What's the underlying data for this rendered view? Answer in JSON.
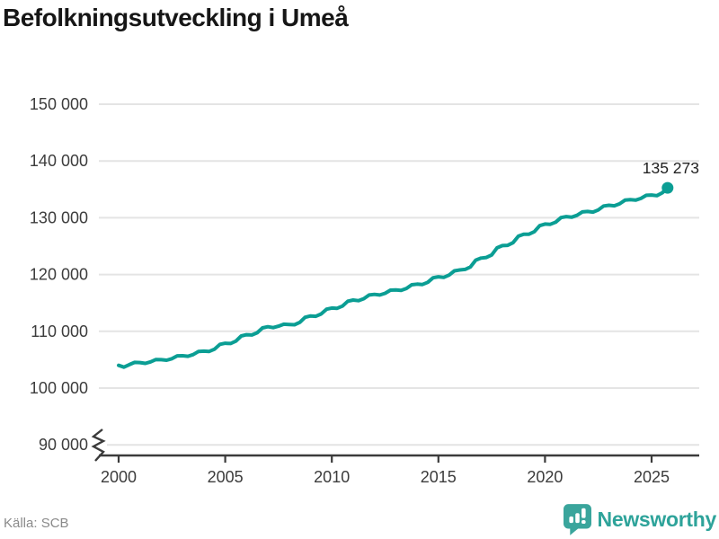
{
  "title": "Befolkningsutveckling i Umeå",
  "source": "Källa: SCB",
  "brand": {
    "name": "Newsworthy"
  },
  "colors": {
    "line": "#0b9e94",
    "grid": "#e4e4e4",
    "axis": "#3b3b3b",
    "tick_text": "#3c3c3c",
    "title_text": "#161616",
    "muted_text": "#8a8a8a",
    "brand_teal": "#2ea39a",
    "end_label_text": "#222222"
  },
  "chart_data": {
    "type": "line",
    "title": "Befolkningsutveckling i Umeå",
    "xlabel": "",
    "ylabel": "",
    "grid": "horizontal-only",
    "legend": "none",
    "x_axis": {
      "ticks": [
        2000,
        2005,
        2010,
        2015,
        2020,
        2025
      ],
      "range": [
        1999.05,
        2027.25
      ]
    },
    "y_axis": {
      "range_shown": [
        90000,
        150000
      ],
      "broken_below": 90000,
      "ticks": [
        {
          "value": 150000,
          "label": "150 000"
        },
        {
          "value": 140000,
          "label": "140 000"
        },
        {
          "value": 130000,
          "label": "130 000"
        },
        {
          "value": 120000,
          "label": "120 000"
        },
        {
          "value": 110000,
          "label": "110 000"
        },
        {
          "value": 100000,
          "label": "100 000"
        },
        {
          "value": 90000,
          "label": "90 000"
        }
      ]
    },
    "last_point": {
      "x": 2025.75,
      "y": 135273,
      "label": "135 273"
    },
    "series": [
      {
        "name": "Befolkning Umeå",
        "points": [
          [
            2000,
            104000
          ],
          [
            2000.25,
            103680
          ],
          [
            2000.5,
            104125
          ],
          [
            2000.75,
            104525
          ],
          [
            2001,
            104500
          ],
          [
            2001.25,
            104350
          ],
          [
            2001.5,
            104625
          ],
          [
            2001.75,
            105025
          ],
          [
            2002,
            105000
          ],
          [
            2002.25,
            104900
          ],
          [
            2002.5,
            105175
          ],
          [
            2002.75,
            105675
          ],
          [
            2003,
            105700
          ],
          [
            2003.25,
            105600
          ],
          [
            2003.5,
            105900
          ],
          [
            2003.75,
            106450
          ],
          [
            2004,
            106500
          ],
          [
            2004.25,
            106450
          ],
          [
            2004.5,
            106850
          ],
          [
            2004.75,
            107700
          ],
          [
            2005,
            107900
          ],
          [
            2005.25,
            107850
          ],
          [
            2005.5,
            108275
          ],
          [
            2005.75,
            109175
          ],
          [
            2006,
            109400
          ],
          [
            2006.25,
            109350
          ],
          [
            2006.5,
            109750
          ],
          [
            2006.75,
            110600
          ],
          [
            2007,
            110800
          ],
          [
            2007.25,
            110650
          ],
          [
            2007.5,
            110900
          ],
          [
            2007.75,
            111250
          ],
          [
            2008,
            111200
          ],
          [
            2008.25,
            111150
          ],
          [
            2008.5,
            111575
          ],
          [
            2008.75,
            112475
          ],
          [
            2009,
            112700
          ],
          [
            2009.25,
            112650
          ],
          [
            2009.5,
            113050
          ],
          [
            2009.75,
            113900
          ],
          [
            2010,
            114100
          ],
          [
            2010.25,
            114050
          ],
          [
            2010.5,
            114450
          ],
          [
            2010.75,
            115300
          ],
          [
            2011,
            115500
          ],
          [
            2011.25,
            115400
          ],
          [
            2011.5,
            115750
          ],
          [
            2011.75,
            116400
          ],
          [
            2012,
            116500
          ],
          [
            2012.25,
            116400
          ],
          [
            2012.5,
            116700
          ],
          [
            2012.75,
            117250
          ],
          [
            2013,
            117300
          ],
          [
            2013.25,
            117200
          ],
          [
            2013.5,
            117550
          ],
          [
            2013.75,
            118200
          ],
          [
            2014,
            118300
          ],
          [
            2014.25,
            118250
          ],
          [
            2014.5,
            118625
          ],
          [
            2014.75,
            119425
          ],
          [
            2015,
            119600
          ],
          [
            2015.25,
            119500
          ],
          [
            2015.5,
            119900
          ],
          [
            2015.75,
            120650
          ],
          [
            2016,
            120800
          ],
          [
            2016.25,
            120900
          ],
          [
            2016.5,
            121325
          ],
          [
            2016.75,
            122525
          ],
          [
            2017,
            122900
          ],
          [
            2017.25,
            123000
          ],
          [
            2017.5,
            123450
          ],
          [
            2017.75,
            124700
          ],
          [
            2018,
            125100
          ],
          [
            2018.25,
            125150
          ],
          [
            2018.5,
            125600
          ],
          [
            2018.75,
            126750
          ],
          [
            2019,
            127100
          ],
          [
            2019.25,
            127100
          ],
          [
            2019.5,
            127550
          ],
          [
            2019.75,
            128600
          ],
          [
            2020,
            128900
          ],
          [
            2020.25,
            128850
          ],
          [
            2020.5,
            129225
          ],
          [
            2020.75,
            130025
          ],
          [
            2021,
            130200
          ],
          [
            2021.25,
            130100
          ],
          [
            2021.5,
            130425
          ],
          [
            2021.75,
            131025
          ],
          [
            2022,
            131100
          ],
          [
            2022.25,
            131000
          ],
          [
            2022.5,
            131375
          ],
          [
            2022.75,
            132075
          ],
          [
            2023,
            132200
          ],
          [
            2023.25,
            132100
          ],
          [
            2023.5,
            132450
          ],
          [
            2023.75,
            133100
          ],
          [
            2024,
            133200
          ],
          [
            2024.25,
            133100
          ],
          [
            2024.5,
            133400
          ],
          [
            2024.75,
            133950
          ],
          [
            2025,
            134000
          ],
          [
            2025.25,
            133900
          ],
          [
            2025.5,
            134400
          ],
          [
            2025.75,
            135273
          ]
        ]
      }
    ]
  }
}
